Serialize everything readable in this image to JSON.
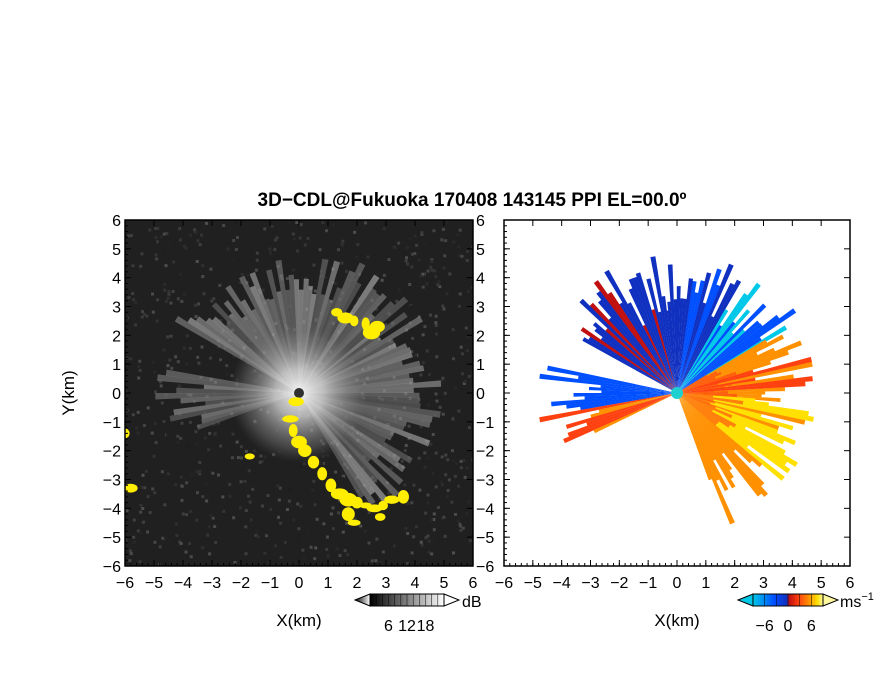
{
  "chart_data": {
    "type": "heatmap",
    "title": "3D−CDL@Fukuoka 170408 143145 PPI EL=00.0º",
    "panels": [
      {
        "quantity": "reflectivity",
        "xlabel": "X(km)",
        "ylabel": "Y(km)",
        "xlim": [
          -6,
          6
        ],
        "ylim": [
          -6,
          6
        ],
        "xticks": [
          "−6",
          "−5",
          "−4",
          "−3",
          "−2",
          "−1",
          "0",
          "1",
          "2",
          "3",
          "4",
          "5",
          "6"
        ],
        "yticks": [
          "−6",
          "−5",
          "−4",
          "−3",
          "−2",
          "−1",
          "0",
          "1",
          "2",
          "3",
          "4",
          "5",
          "6"
        ],
        "colorbar": {
          "unit": "dB",
          "ticks": [
            "6",
            "12",
            "18"
          ],
          "range": [
            0,
            24
          ],
          "colors": [
            "#000000",
            "#ffffff"
          ]
        },
        "background": "#202020",
        "highlight_color": "#ffee00",
        "echo_sectors_deg": [
          [
            -60,
            150
          ],
          [
            170,
            200
          ]
        ],
        "highlight_points": [
          [
            -0.3,
            -0.9
          ],
          [
            -0.2,
            -1.3
          ],
          [
            0,
            -1.7
          ],
          [
            0.2,
            -2.0
          ],
          [
            0.5,
            -2.4
          ],
          [
            0.8,
            -2.8
          ],
          [
            1.1,
            -3.2
          ],
          [
            1.4,
            -3.5
          ],
          [
            1.7,
            -3.7
          ],
          [
            2.0,
            -3.8
          ],
          [
            2.3,
            -3.9
          ],
          [
            2.6,
            -4.0
          ],
          [
            2.9,
            -3.9
          ],
          [
            3.2,
            -3.7
          ],
          [
            3.6,
            -3.6
          ],
          [
            1.7,
            -4.2
          ],
          [
            1.9,
            -4.5
          ],
          [
            2.8,
            -4.3
          ],
          [
            1.3,
            2.8
          ],
          [
            1.6,
            2.6
          ],
          [
            1.9,
            2.5
          ],
          [
            2.3,
            2.4
          ],
          [
            2.5,
            2.1
          ],
          [
            2.7,
            2.3
          ],
          [
            -0.1,
            -0.3
          ],
          [
            -6.0,
            -1.4
          ],
          [
            -5.8,
            -3.3
          ],
          [
            -1.7,
            -2.2
          ]
        ]
      },
      {
        "quantity": "doppler velocity",
        "xlabel": "X(km)",
        "xlim": [
          -6,
          6
        ],
        "ylim": [
          -6,
          6
        ],
        "xticks": [
          "−6",
          "−5",
          "−4",
          "−3",
          "−2",
          "−1",
          "0",
          "1",
          "2",
          "3",
          "4",
          "5",
          "6"
        ],
        "yticks": [
          "−6",
          "−5",
          "−4",
          "−3",
          "−2",
          "−1",
          "0",
          "1",
          "2",
          "3",
          "4",
          "5",
          "6"
        ],
        "colorbar": {
          "unit": "ms",
          "unit_exponent": "−1",
          "ticks": [
            "−6",
            "0",
            "6"
          ],
          "range": [
            -9,
            9
          ],
          "colors": [
            "#00c8e8",
            "#0050ff",
            "#1030c0",
            "#c01010",
            "#ff4010",
            "#ff9000",
            "#ffe000",
            "#fff8a0"
          ]
        },
        "background": "#ffffff",
        "sectors_velocity": [
          {
            "from_deg": 95,
            "to_deg": 150,
            "velocity": -3
          },
          {
            "from_deg": 60,
            "to_deg": 95,
            "velocity": -5
          },
          {
            "from_deg": 30,
            "to_deg": 60,
            "velocity": -7
          },
          {
            "from_deg": -5,
            "to_deg": 30,
            "velocity": 3
          },
          {
            "from_deg": -40,
            "to_deg": -5,
            "velocity": 6
          },
          {
            "from_deg": -70,
            "to_deg": -40,
            "velocity": 4
          },
          {
            "from_deg": 168,
            "to_deg": 190,
            "velocity": -6
          },
          {
            "from_deg": 190,
            "to_deg": 205,
            "velocity": 2
          }
        ]
      }
    ]
  }
}
